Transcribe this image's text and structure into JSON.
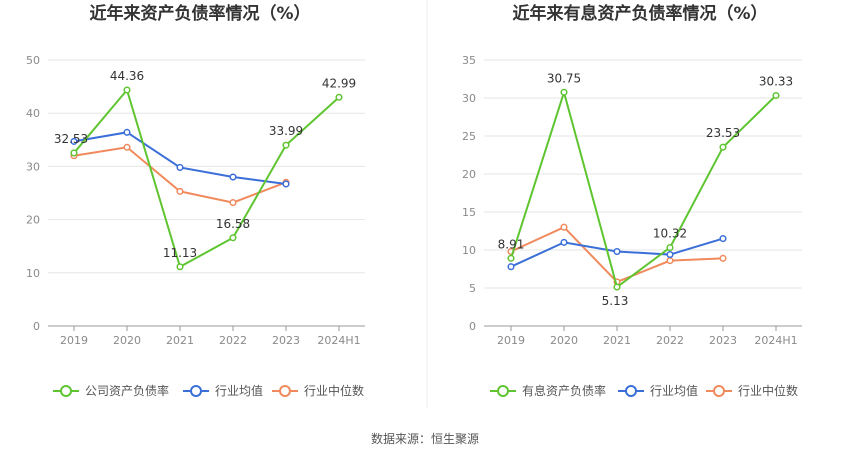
{
  "chart_data": [
    {
      "type": "line",
      "title": "近年来资产负债率情况（%）",
      "categories": [
        "2019",
        "2020",
        "2021",
        "2022",
        "2023",
        "2024H1"
      ],
      "ylim": [
        0,
        50
      ],
      "yticks": [
        "0",
        "10",
        "20",
        "30",
        "40",
        "50"
      ],
      "grid": true,
      "legend_position": "bottom",
      "series": [
        {
          "name": "公司资产负债率",
          "color": "#5ec530",
          "values": [
            32.53,
            44.36,
            11.13,
            16.58,
            33.99,
            42.99
          ],
          "labels": [
            "32.53",
            "44.36",
            "11.13",
            "16.58",
            "33.99",
            "42.99"
          ]
        },
        {
          "name": "行业均值",
          "color": "#3b6fd8",
          "values": [
            34.7,
            36.4,
            29.8,
            28.0,
            26.7,
            null
          ]
        },
        {
          "name": "行业中位数",
          "color": "#f08a5d",
          "values": [
            32.0,
            33.6,
            25.3,
            23.2,
            27.0,
            null
          ]
        }
      ]
    },
    {
      "type": "line",
      "title": "近年来有息资产负债率情况（%）",
      "categories": [
        "2019",
        "2020",
        "2021",
        "2022",
        "2023",
        "2024H1"
      ],
      "ylim": [
        0,
        35
      ],
      "yticks": [
        "0",
        "5",
        "10",
        "15",
        "20",
        "25",
        "30",
        "35"
      ],
      "grid": true,
      "legend_position": "bottom",
      "series": [
        {
          "name": "有息资产负债率",
          "color": "#5ec530",
          "values": [
            8.91,
            30.75,
            5.13,
            10.32,
            23.53,
            30.33
          ],
          "labels": [
            "8.91",
            "30.75",
            "5.13",
            "10.32",
            "23.53",
            "30.33"
          ]
        },
        {
          "name": "行业均值",
          "color": "#3b6fd8",
          "values": [
            7.8,
            11.0,
            9.8,
            9.4,
            11.5,
            null
          ]
        },
        {
          "name": "行业中位数",
          "color": "#f08a5d",
          "values": [
            9.8,
            13.0,
            5.8,
            8.6,
            8.9,
            null
          ]
        }
      ]
    }
  ],
  "source": "数据来源：恒生聚源"
}
